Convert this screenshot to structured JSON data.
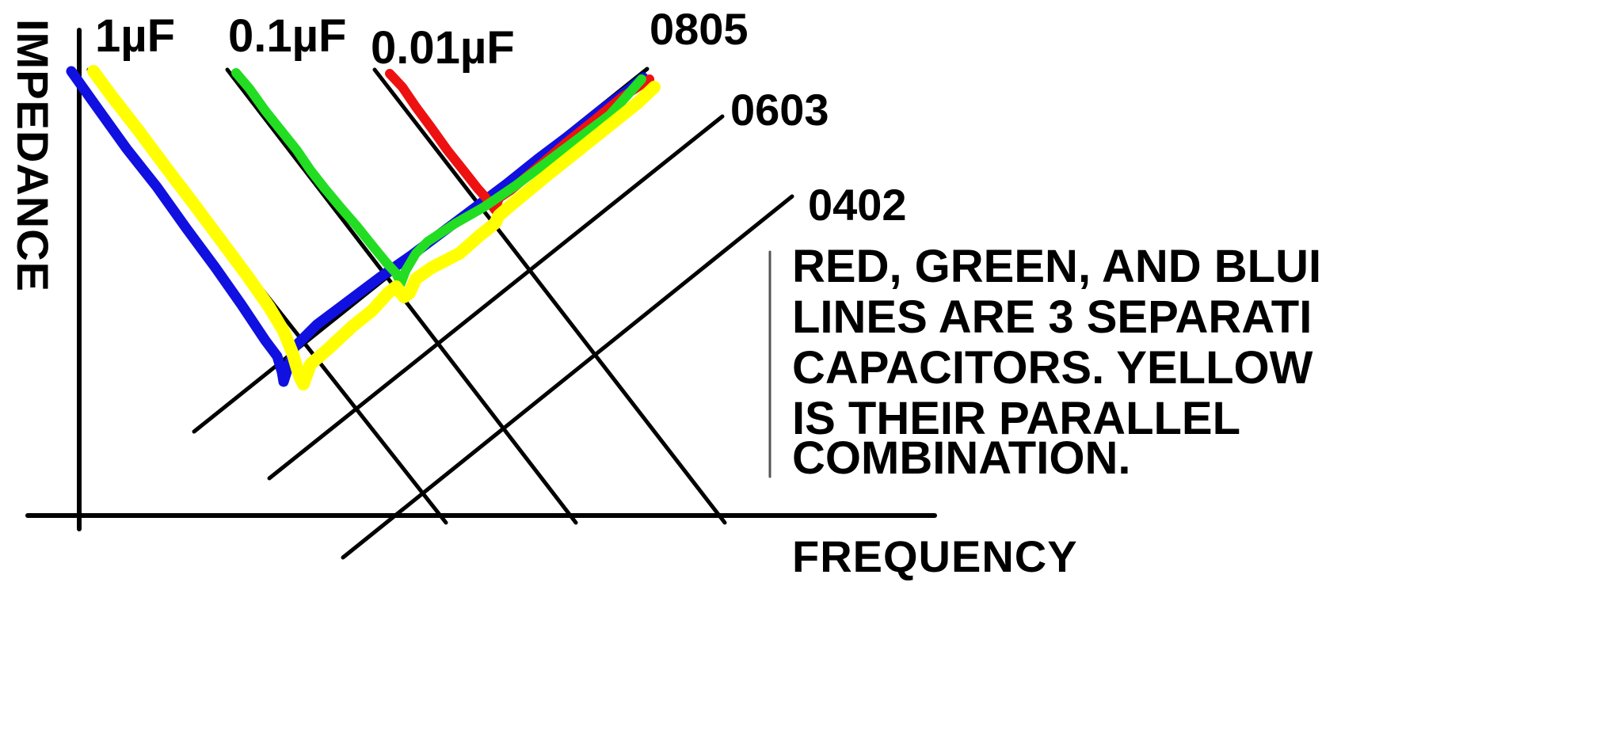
{
  "labels": {
    "capacitances": [
      "1µF",
      "0.1µF",
      "0.01µF"
    ],
    "package_sizes": [
      "0805",
      "0603",
      "0402"
    ],
    "x_axis": "FREQUENCY",
    "y_axis": "IMPEDANCE"
  },
  "note": {
    "lines": [
      "RED, GREEN, AND BLUI",
      "LINES ARE 3 SEPARATI",
      "CAPACITORS. YELLOW",
      "IS THEIR PARALLEL",
      "COMBINATION."
    ]
  },
  "curves": [
    {
      "color": "#1010e0"
    },
    {
      "color": "#22dd22"
    },
    {
      "color": "#ee1111"
    },
    {
      "color": "#ffff00"
    }
  ]
}
